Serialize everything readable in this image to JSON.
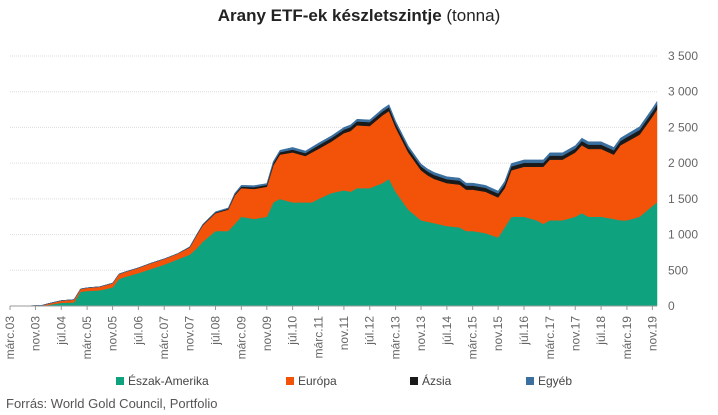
{
  "chart_data": {
    "type": "area",
    "stacked": true,
    "title_bold": "Arany ETF-ek készletszintje",
    "title_normal": "(tonna)",
    "y_axis": {
      "min": 0,
      "max": 3500,
      "step": 500,
      "position": "right",
      "tick_labels": [
        "0",
        "500",
        "1 000",
        "1 500",
        "2 000",
        "2 500",
        "3 000",
        "3 500"
      ]
    },
    "x_axis": {
      "tick_labels": [
        "márc.03",
        "nov.03",
        "júl.04",
        "márc.05",
        "nov.05",
        "júl.06",
        "márc.07",
        "nov.07",
        "júl.08",
        "márc.09",
        "nov.09",
        "júl.10",
        "márc.11",
        "nov.11",
        "júl.12",
        "márc.13",
        "nov.13",
        "júl.14",
        "márc.15",
        "nov.15",
        "júl.16",
        "márc.17",
        "nov.17",
        "júl.18",
        "márc.19",
        "nov.19"
      ],
      "tick_positions": [
        2003.17,
        2003.83,
        2004.5,
        2005.17,
        2005.83,
        2006.5,
        2007.17,
        2007.83,
        2008.5,
        2009.17,
        2009.83,
        2010.5,
        2011.17,
        2011.83,
        2012.5,
        2013.17,
        2013.83,
        2014.5,
        2015.17,
        2015.83,
        2016.5,
        2017.17,
        2017.83,
        2018.5,
        2019.17,
        2019.83
      ],
      "min": 2003.17,
      "max": 2019.95
    },
    "grid": "horizontal",
    "legend_position": "bottom",
    "x": [
      2003.17,
      2003.5,
      2003.83,
      2004.0,
      2004.17,
      2004.5,
      2004.83,
      2005.0,
      2005.17,
      2005.5,
      2005.83,
      2006.0,
      2006.17,
      2006.5,
      2006.83,
      2007.17,
      2007.5,
      2007.83,
      2008.0,
      2008.17,
      2008.5,
      2008.83,
      2009.0,
      2009.17,
      2009.5,
      2009.83,
      2010.0,
      2010.17,
      2010.5,
      2010.83,
      2011.0,
      2011.17,
      2011.5,
      2011.83,
      2012.0,
      2012.17,
      2012.5,
      2012.83,
      2013.0,
      2013.17,
      2013.5,
      2013.83,
      2014.0,
      2014.17,
      2014.5,
      2014.83,
      2015.0,
      2015.17,
      2015.5,
      2015.83,
      2016.0,
      2016.17,
      2016.5,
      2016.83,
      2017.0,
      2017.17,
      2017.5,
      2017.83,
      2018.0,
      2018.17,
      2018.5,
      2018.83,
      2019.0,
      2019.17,
      2019.5,
      2019.83,
      2019.95
    ],
    "series": [
      {
        "name": "Észak-Amerika",
        "color": "#0ea27f",
        "values": [
          0,
          0,
          0,
          0,
          15,
          45,
          50,
          200,
          210,
          220,
          260,
          380,
          410,
          460,
          520,
          580,
          650,
          720,
          800,
          900,
          1050,
          1050,
          1150,
          1250,
          1220,
          1250,
          1450,
          1500,
          1450,
          1450,
          1450,
          1500,
          1580,
          1620,
          1600,
          1650,
          1650,
          1720,
          1780,
          1600,
          1350,
          1200,
          1180,
          1160,
          1120,
          1100,
          1050,
          1050,
          1020,
          960,
          1100,
          1250,
          1250,
          1200,
          1150,
          1200,
          1200,
          1250,
          1300,
          1250,
          1250,
          1220,
          1200,
          1200,
          1250,
          1400,
          1450
        ]
      },
      {
        "name": "Európa",
        "color": "#f35209",
        "values": [
          0,
          0,
          5,
          10,
          20,
          30,
          40,
          40,
          45,
          50,
          60,
          70,
          70,
          75,
          80,
          80,
          80,
          100,
          180,
          230,
          250,
          300,
          400,
          400,
          420,
          420,
          520,
          620,
          700,
          650,
          700,
          700,
          720,
          800,
          850,
          880,
          870,
          950,
          950,
          900,
          800,
          700,
          650,
          620,
          600,
          600,
          580,
          580,
          580,
          560,
          550,
          650,
          700,
          750,
          800,
          850,
          850,
          900,
          950,
          950,
          950,
          900,
          1050,
          1100,
          1150,
          1250,
          1300
        ]
      },
      {
        "name": "Ázsia",
        "color": "#1a1a1a",
        "values": [
          0,
          0,
          0,
          0,
          0,
          0,
          0,
          0,
          0,
          0,
          0,
          0,
          0,
          0,
          0,
          0,
          0,
          5,
          5,
          8,
          10,
          12,
          15,
          20,
          25,
          25,
          30,
          35,
          40,
          40,
          45,
          50,
          50,
          50,
          55,
          55,
          55,
          55,
          55,
          55,
          55,
          55,
          55,
          55,
          55,
          55,
          55,
          55,
          55,
          55,
          55,
          55,
          55,
          55,
          55,
          55,
          55,
          55,
          60,
          60,
          60,
          60,
          60,
          65,
          65,
          70,
          70
        ]
      },
      {
        "name": "Egyéb",
        "color": "#3a6f9f",
        "values": [
          0,
          0,
          0,
          0,
          0,
          0,
          0,
          0,
          0,
          0,
          0,
          0,
          0,
          0,
          0,
          0,
          0,
          5,
          5,
          8,
          10,
          12,
          15,
          20,
          20,
          20,
          25,
          25,
          30,
          30,
          30,
          30,
          30,
          30,
          30,
          30,
          30,
          35,
          35,
          35,
          35,
          35,
          35,
          35,
          35,
          35,
          35,
          35,
          35,
          35,
          40,
          40,
          40,
          40,
          40,
          40,
          40,
          40,
          40,
          40,
          40,
          40,
          40,
          40,
          45,
          45,
          45
        ]
      }
    ]
  },
  "source_text": "Forrás: World Gold Council, Portfolio"
}
